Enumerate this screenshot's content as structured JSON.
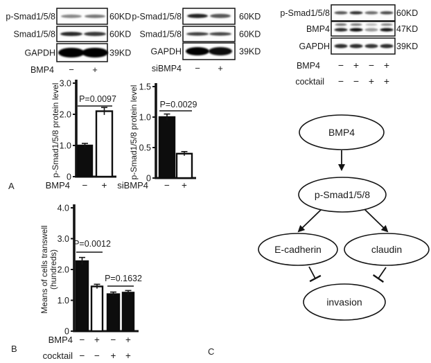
{
  "panels": {
    "a": "A",
    "b": "B",
    "c": "C"
  },
  "blots": [
    {
      "name": "western-blot-bmp4",
      "rows": [
        {
          "label": "p-Smad1/5/8",
          "kd": "60KD",
          "intensities": [
            0.38,
            0.46
          ]
        },
        {
          "label": "Smad1/5/8",
          "kd": "60KD",
          "intensities": [
            0.82,
            0.74
          ]
        },
        {
          "label": "GAPDH",
          "kd": "39KD",
          "intensities": [
            1.0,
            1.0
          ]
        }
      ],
      "condition_rows": [
        {
          "label": "BMP4",
          "values": [
            "−",
            "+"
          ]
        }
      ]
    },
    {
      "name": "western-blot-sibmp4",
      "rows": [
        {
          "label": "p-Smad1/5/8",
          "kd": "60KD",
          "intensities": [
            0.85,
            0.6
          ]
        },
        {
          "label": "Smad1/5/8",
          "kd": "60KD",
          "intensities": [
            0.72,
            0.68
          ]
        },
        {
          "label": "GAPDH",
          "kd": "39KD",
          "intensities": [
            1.0,
            0.95
          ]
        }
      ],
      "condition_rows": [
        {
          "label": "siBMP4",
          "values": [
            "−",
            "+"
          ]
        }
      ]
    },
    {
      "name": "western-blot-bmp4-cocktail",
      "rows": [
        {
          "label": "p-Smad1/5/8",
          "kd": "60KD",
          "intensities": [
            0.6,
            0.78,
            0.5,
            0.65
          ]
        },
        {
          "label": "BMP4",
          "kd": "47KD",
          "intensities": [
            0.8,
            0.95,
            0.3,
            0.9
          ],
          "upper": [
            0.5,
            0.45,
            0.15,
            0.4
          ]
        },
        {
          "label": "GAPDH",
          "kd": "39KD",
          "intensities": [
            0.78,
            0.78,
            0.75,
            0.78
          ]
        }
      ],
      "condition_rows": [
        {
          "label": "BMP4",
          "values": [
            "−",
            "+",
            "−",
            "+"
          ]
        },
        {
          "label": "cocktail",
          "values": [
            "−",
            "−",
            "+",
            "+"
          ]
        }
      ]
    }
  ],
  "chart_data": [
    {
      "id": "chart-psmad-bmp4",
      "type": "bar",
      "title": "",
      "ylabel": "p-Smad1/5/8 protein level",
      "ylim": [
        0,
        3.0
      ],
      "yticks": [
        "0",
        "1.0",
        "2.0",
        "3.0"
      ],
      "values": [
        1.0,
        2.1
      ],
      "errors": [
        0.06,
        0.12
      ],
      "fills": [
        "black",
        "white"
      ],
      "condition_rows": [
        {
          "label": "BMP4",
          "values": [
            "−",
            "+"
          ]
        }
      ],
      "significance": [
        {
          "from": 0,
          "to": 1,
          "label": "P=0.0097"
        }
      ]
    },
    {
      "id": "chart-psmad-sibmp4",
      "type": "bar",
      "title": "",
      "ylabel": "p-Smad1/5/8 protein level",
      "ylim": [
        0,
        1.5
      ],
      "yticks": [
        "0",
        "0.5",
        "1.0",
        "1.5"
      ],
      "values": [
        1.0,
        0.4
      ],
      "errors": [
        0.05,
        0.02
      ],
      "fills": [
        "black",
        "white"
      ],
      "condition_rows": [
        {
          "label": "siBMP4",
          "values": [
            "−",
            "+"
          ]
        }
      ],
      "significance": [
        {
          "from": 0,
          "to": 1,
          "label": "P=0.0029"
        }
      ]
    },
    {
      "id": "chart-transwell",
      "type": "bar",
      "title": "",
      "ylabel": "Means of cells transwell",
      "ylabel2": "(hundreds)",
      "ylim": [
        0,
        4.0
      ],
      "yticks": [
        "0",
        "1.0",
        "2.0",
        "3.0",
        "4.0"
      ],
      "values": [
        2.27,
        1.45,
        1.2,
        1.25
      ],
      "errors": [
        0.12,
        0.07,
        0.03,
        0.04
      ],
      "fills": [
        "black",
        "white",
        "black",
        "black"
      ],
      "condition_rows": [
        {
          "label": "BMP4",
          "values": [
            "−",
            "+",
            "−",
            "+"
          ]
        },
        {
          "label": "cocktail",
          "values": [
            "−",
            "−",
            "+",
            "+"
          ]
        }
      ],
      "significance": [
        {
          "from": 0,
          "to": 1,
          "label": "P=0.0012"
        },
        {
          "from": 2,
          "to": 3,
          "label": "P=0.1632"
        }
      ]
    }
  ],
  "diagram": {
    "nodes": [
      {
        "id": "bmp4",
        "label": "BMP4"
      },
      {
        "id": "psmad",
        "label": "p-Smad1/5/8"
      },
      {
        "id": "ecadherin",
        "label": "E-cadherin"
      },
      {
        "id": "claudin",
        "label": "claudin"
      },
      {
        "id": "invasion",
        "label": "invasion"
      }
    ],
    "edges": [
      {
        "from": "bmp4",
        "to": "psmad",
        "type": "activate"
      },
      {
        "from": "psmad",
        "to": "ecadherin",
        "type": "activate"
      },
      {
        "from": "psmad",
        "to": "claudin",
        "type": "activate"
      },
      {
        "from": "ecadherin",
        "to": "invasion",
        "type": "inhibit"
      },
      {
        "from": "claudin",
        "to": "invasion",
        "type": "inhibit"
      }
    ]
  }
}
